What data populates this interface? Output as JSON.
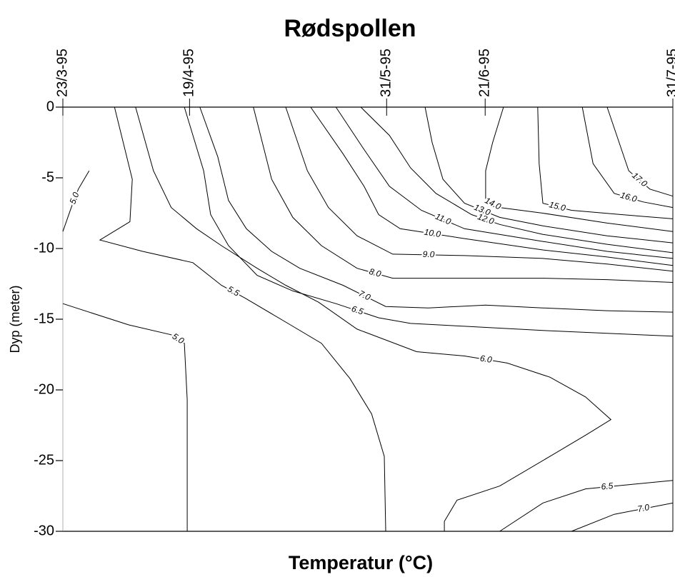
{
  "chart_data": {
    "type": "contour",
    "title": "Rødspollen",
    "xlabel": "Temperatur (°C)",
    "ylabel": "Dyp (meter)",
    "xlim": [
      82,
      212
    ],
    "xticks": [
      {
        "value": 82,
        "label": "23/3-95"
      },
      {
        "value": 109,
        "label": "19/4-95"
      },
      {
        "value": 151,
        "label": "31/5-95"
      },
      {
        "value": 172,
        "label": "21/6-95"
      },
      {
        "value": 212,
        "label": "31/7-95"
      }
    ],
    "ylim": [
      -30,
      0
    ],
    "yticks": [
      0,
      -5,
      -10,
      -15,
      -20,
      -25,
      -30
    ],
    "color": "#000000",
    "contours": [
      {
        "level": 5,
        "label": "5.0",
        "x": [
          87.6,
          85.3,
          83.8,
          82.0
        ],
        "y": [
          -4.5,
          -5.8,
          -7.1,
          -8.8
        ]
      },
      {
        "level": 5.5,
        "label": "5.5",
        "x": [
          93.0,
          96.8,
          96.3,
          89.9,
          99.0,
          109.7,
          115.8,
          120.8,
          129.5,
          137.1,
          143.2,
          147.8,
          150.5,
          150.8
        ],
        "y": [
          0,
          -5.1,
          -8.1,
          -9.4,
          -10.2,
          -11.0,
          -12.6,
          -13.5,
          -15.2,
          -16.7,
          -19.2,
          -21.7,
          -24.7,
          -30
        ]
      },
      {
        "level": 5,
        "label": "5.0",
        "x": [
          82.0,
          96.0,
          105.1,
          107.9,
          108.5,
          108.5
        ],
        "y": [
          -13.9,
          -15.4,
          -16.1,
          -16.7,
          -20.7,
          -30
        ]
      },
      {
        "level": 6,
        "label": "6.0",
        "x": [
          97.5,
          101.3,
          105.1,
          110.5,
          115.8,
          123.4,
          129.5,
          136.5,
          144.7,
          157.4,
          167.6,
          176.7,
          185.8,
          193.4,
          198.8,
          193.4,
          185.8,
          175.1,
          166.0,
          163.3,
          163.3
        ],
        "y": [
          0,
          -4.5,
          -7.1,
          -8.6,
          -9.8,
          -11.4,
          -12.6,
          -13.8,
          -15.7,
          -17.3,
          -17.6,
          -18.1,
          -19.1,
          -20.5,
          -22.1,
          -23.2,
          -24.7,
          -26.8,
          -27.8,
          -29.3,
          -30
        ]
      },
      {
        "level": 6.5,
        "label": "6.5",
        "x": [
          107.9,
          112.0,
          113.5,
          117.3,
          123.4,
          131.0,
          140.2,
          149.3,
          156.1,
          167.6,
          184.3,
          198.0,
          212.0
        ],
        "y": [
          0,
          -4.5,
          -7.6,
          -9.8,
          -11.9,
          -13.0,
          -13.9,
          -14.9,
          -15.3,
          -15.5,
          -15.8,
          -16.0,
          -16.2
        ]
      },
      {
        "level": 7,
        "label": "7.0",
        "x": [
          111.2,
          115.0,
          117.3,
          121.1,
          126.5,
          132.5,
          141.7,
          150.8,
          159.9,
          172.1,
          184.3,
          198.0,
          212.0
        ],
        "y": [
          0,
          -3.5,
          -6.6,
          -8.6,
          -10.2,
          -11.4,
          -12.6,
          -14.1,
          -14.2,
          -14.0,
          -14.2,
          -14.4,
          -14.5
        ]
      },
      {
        "level": 8,
        "label": "8.0",
        "x": [
          122.6,
          126.5,
          131.0,
          137.1,
          144.7,
          152.3,
          167.6,
          184.3,
          198.0,
          212.0
        ],
        "y": [
          0,
          -5.1,
          -7.8,
          -9.8,
          -11.4,
          -12.1,
          -12.1,
          -12.1,
          -12.2,
          -12.4
        ]
      },
      {
        "level": 9,
        "label": "9.0",
        "x": [
          129.5,
          134.1,
          138.6,
          144.7,
          152.3,
          167.6,
          184.3,
          198.0,
          212.0
        ],
        "y": [
          0,
          -4.5,
          -7.1,
          -9.1,
          -10.4,
          -10.5,
          -10.7,
          -11.1,
          -11.6
        ]
      },
      {
        "level": 10,
        "label": "10.0",
        "x": [
          134.8,
          141.7,
          146.2,
          149.3,
          153.9,
          167.6,
          184.3,
          198.0,
          212.0
        ],
        "y": [
          0,
          -3.3,
          -5.6,
          -7.6,
          -8.6,
          -9.3,
          -10.1,
          -10.6,
          -11.2
        ]
      },
      {
        "level": 11,
        "label": "11.0",
        "x": [
          140.2,
          146.2,
          151.6,
          158.4,
          167.6,
          184.3,
          198.0,
          212.0
        ],
        "y": [
          0,
          -3.0,
          -5.6,
          -7.3,
          -8.6,
          -9.5,
          -10.2,
          -10.7
        ]
      },
      {
        "level": 12,
        "label": "12.0",
        "x": [
          145.5,
          151.6,
          156.1,
          161.5,
          169.1,
          175.1,
          184.3,
          198.0,
          212.0
        ],
        "y": [
          0,
          -2.0,
          -4.3,
          -6.1,
          -7.6,
          -8.3,
          -9.0,
          -9.7,
          -10.3
        ]
      },
      {
        "level": 13,
        "label": "13.0",
        "x": [
          159.2,
          160.7,
          163.0,
          167.6,
          175.1,
          184.3,
          198.0,
          212.0
        ],
        "y": [
          0,
          -2.5,
          -5.1,
          -6.8,
          -7.8,
          -8.4,
          -9.1,
          -9.6
        ]
      },
      {
        "level": 14,
        "label": "14.0",
        "x": [
          175.9,
          173.6,
          172.1,
          172.1,
          175.1,
          184.3,
          198.0,
          212.0
        ],
        "y": [
          0,
          -2.5,
          -4.5,
          -6.6,
          -7.1,
          -7.5,
          -8.2,
          -8.8
        ]
      },
      {
        "level": 15,
        "label": "15.0",
        "x": [
          183.2,
          183.5,
          184.3,
          190.4,
          201.0,
          212.0
        ],
        "y": [
          0,
          -4.0,
          -6.8,
          -7.3,
          -7.6,
          -7.9
        ]
      },
      {
        "level": 16,
        "label": "16.0",
        "x": [
          192.7,
          195.0,
          199.5,
          205.6,
          212.0
        ],
        "y": [
          0,
          -4.0,
          -6.1,
          -6.7,
          -7.1
        ]
      },
      {
        "level": 17,
        "label": "17.0",
        "x": [
          198.0,
          202.6,
          207.1,
          212.0
        ],
        "y": [
          0,
          -4.5,
          -5.8,
          -6.3
        ]
      },
      {
        "level": 6.5,
        "label": "6.5",
        "x": [
          175.1,
          184.3,
          193.4,
          202.6,
          212.0
        ],
        "y": [
          -30,
          -28.0,
          -27.0,
          -26.7,
          -26.4
        ]
      },
      {
        "level": 7,
        "label": "7.0",
        "x": [
          190.4,
          199.5,
          212.0
        ],
        "y": [
          -30,
          -28.8,
          -28.0
        ]
      }
    ]
  }
}
